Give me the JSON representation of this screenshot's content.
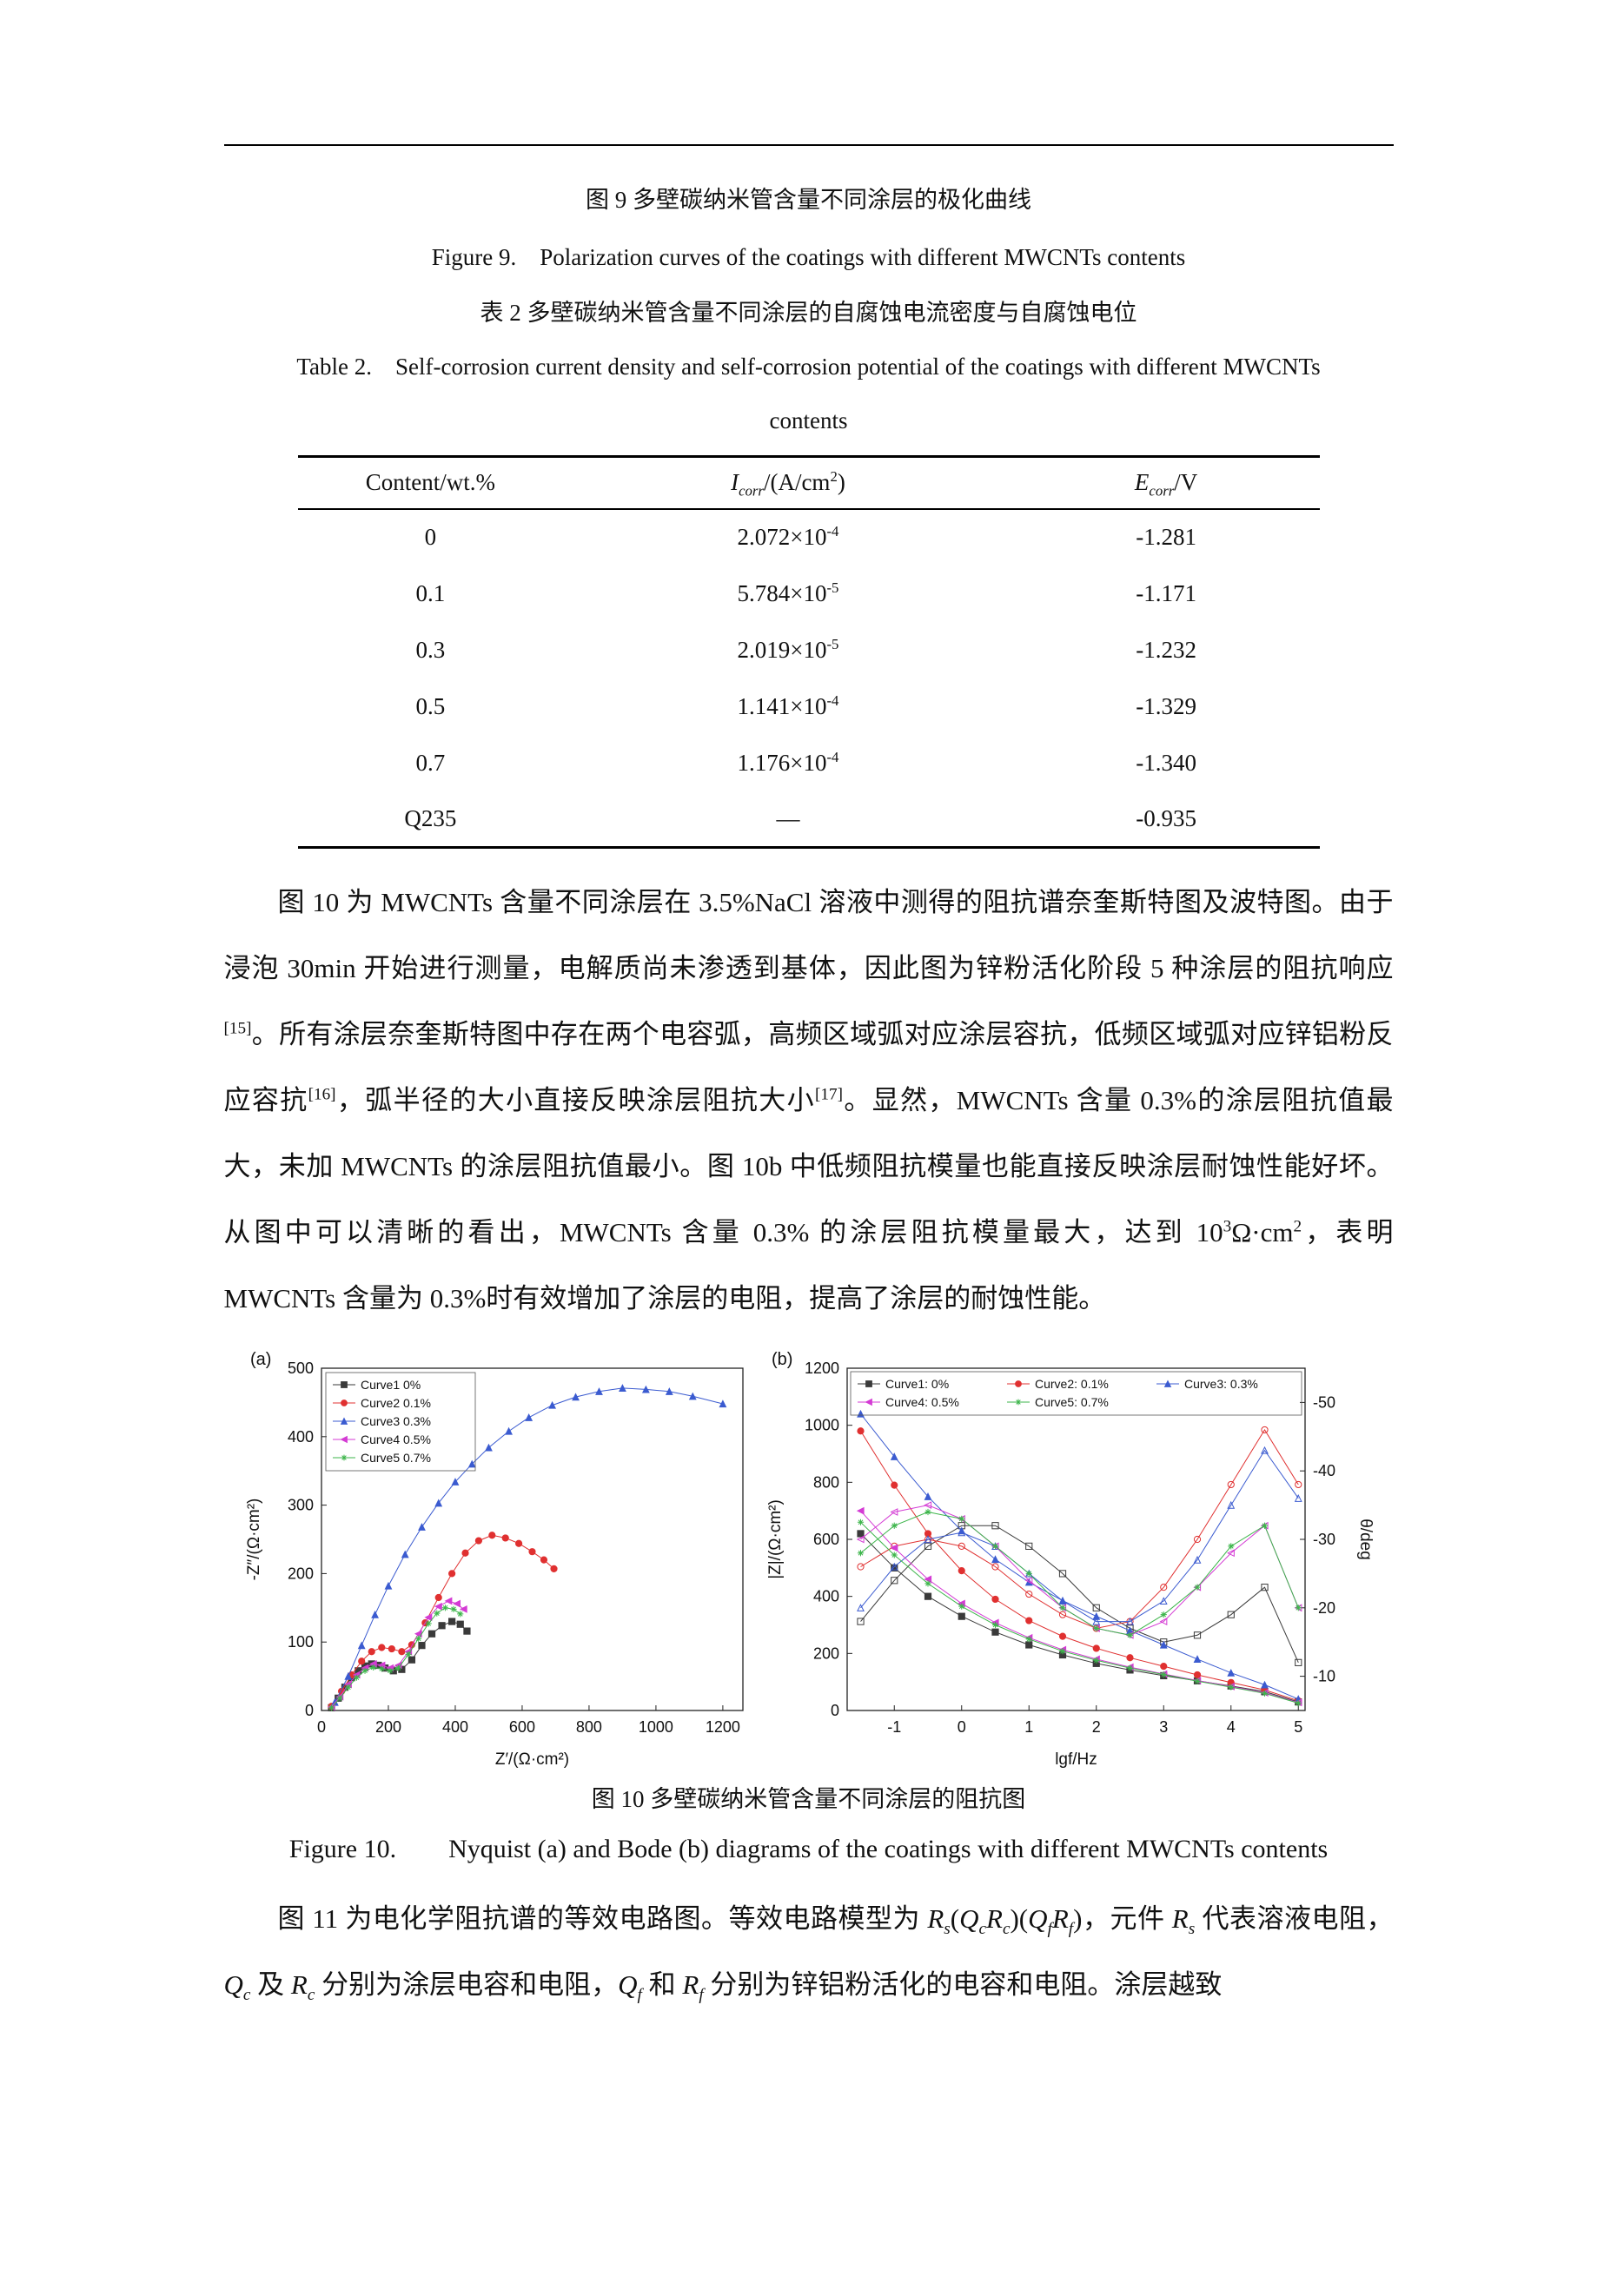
{
  "page": {
    "captions": {
      "fig9_cn": "图 9 多壁碳纳米管含量不同涂层的极化曲线",
      "fig9_en": "Figure 9.    Polarization curves of the coatings with different MWCNTs contents",
      "table2_cn": "表 2 多壁碳纳米管含量不同涂层的自腐蚀电流密度与自腐蚀电位",
      "table2_en_line1": "Table 2.    Self-corrosion current density and self-corrosion potential of the coatings with different MWCNTs",
      "table2_en_line2": "contents",
      "fig10_cn": "图 10 多壁碳纳米管含量不同涂层的阻抗图",
      "fig10_en": "Figure 10.        Nyquist (a) and Bode (b) diagrams of the coatings with different MWCNTs contents"
    },
    "table2": {
      "headers": [
        "Content/wt.%",
        "~I~_{~corr~}/(A/cm^{2})",
        "~E~_{~corr~}/V"
      ],
      "rows": [
        [
          "0",
          "2.072×10^{-4}",
          "-1.281"
        ],
        [
          "0.1",
          "5.784×10^{-5}",
          "-1.171"
        ],
        [
          "0.3",
          "2.019×10^{-5}",
          "-1.232"
        ],
        [
          "0.5",
          "1.141×10^{-4}",
          "-1.329"
        ],
        [
          "0.7",
          "1.176×10^{-4}",
          "-1.340"
        ],
        [
          "Q235",
          "—",
          "-0.935"
        ]
      ]
    },
    "paragraph1": "图 10 为 MWCNTs 含量不同涂层在 3.5%NaCl 溶液中测得的阻抗谱奈奎斯特图及波特图。由于浸泡 30min 开始进行测量，电解质尚未渗透到基体，因此图为锌粉活化阶段 5 种涂层的阻抗响应^{[15]}。所有涂层奈奎斯特图中存在两个电容弧，高频区域弧对应涂层容抗，低频区域弧对应锌铝粉反应容抗^{[16]}，弧半径的大小直接反映涂层阻抗大小^{[17]}。显然，MWCNTs 含量 0.3%的涂层阻抗值最大，未加 MWCNTs 的涂层阻抗值最小。图 10b 中低频阻抗模量也能直接反映涂层耐蚀性能好坏。从图中可以清晰的看出，MWCNTs 含量 0.3% 的涂层阻抗模量最大，达到 10^{3}Ω·cm^{2}，表明 MWCNTs 含量为 0.3%时有效增加了涂层的电阻，提高了涂层的耐蚀性能。",
    "paragraph2": "图 11 为电化学阻抗谱的等效电路图。等效电路模型为 ~R~_{~s~}(~Q~_{~c~}~R~_{~c~})(~Q~_{~f~}~R~_{~f~})，元件 ~R~_{~s~} 代表溶液电阻，~Q~_{~c~} 及 ~R~_{~c~} 分别为涂层电容和电阻，~Q~_{~f~} 和 ~R~_{~f~} 分别为锌铝粉活化的电容和电阻。涂层越致"
  },
  "chart_data": [
    {
      "id": "nyquist",
      "type": "scatter",
      "panel_label": "(a)",
      "xlabel": "Z′/(Ω·cm²)",
      "ylabel": "-Z″/(Ω·cm²)",
      "xlim": [
        0,
        1260
      ],
      "ylim": [
        0,
        500
      ],
      "xticks": [
        0,
        200,
        400,
        600,
        800,
        1000,
        1200
      ],
      "yticks": [
        0,
        100,
        200,
        300,
        400,
        500
      ],
      "legend_position": "top-left",
      "series": [
        {
          "name": "Curve1 0%",
          "color": "#3a3a3a",
          "marker": "square",
          "points": [
            [
              30,
              4
            ],
            [
              50,
              18
            ],
            [
              70,
              34
            ],
            [
              90,
              48
            ],
            [
              110,
              58
            ],
            [
              130,
              65
            ],
            [
              150,
              68
            ],
            [
              170,
              66
            ],
            [
              190,
              62
            ],
            [
              215,
              58
            ],
            [
              240,
              60
            ],
            [
              270,
              74
            ],
            [
              300,
              95
            ],
            [
              330,
              112
            ],
            [
              360,
              124
            ],
            [
              390,
              130
            ],
            [
              415,
              126
            ],
            [
              435,
              116
            ]
          ]
        },
        {
          "name": "Curve2 0.1%",
          "color": "#e03030",
          "marker": "circle",
          "points": [
            [
              30,
              6
            ],
            [
              60,
              28
            ],
            [
              90,
              52
            ],
            [
              120,
              72
            ],
            [
              150,
              86
            ],
            [
              180,
              92
            ],
            [
              210,
              90
            ],
            [
              240,
              86
            ],
            [
              270,
              96
            ],
            [
              310,
              128
            ],
            [
              350,
              165
            ],
            [
              390,
              200
            ],
            [
              430,
              230
            ],
            [
              470,
              248
            ],
            [
              510,
              256
            ],
            [
              550,
              252
            ],
            [
              590,
              244
            ],
            [
              630,
              232
            ],
            [
              665,
              220
            ],
            [
              695,
              207
            ]
          ]
        },
        {
          "name": "Curve3 0.3%",
          "color": "#3b5bd0",
          "marker": "triangle",
          "points": [
            [
              40,
              12
            ],
            [
              80,
              50
            ],
            [
              120,
              95
            ],
            [
              160,
              140
            ],
            [
              200,
              182
            ],
            [
              250,
              228
            ],
            [
              300,
              268
            ],
            [
              350,
              303
            ],
            [
              400,
              334
            ],
            [
              450,
              360
            ],
            [
              500,
              384
            ],
            [
              560,
              408
            ],
            [
              620,
              428
            ],
            [
              690,
              446
            ],
            [
              760,
              458
            ],
            [
              830,
              466
            ],
            [
              900,
              471
            ],
            [
              970,
              469
            ],
            [
              1040,
              466
            ],
            [
              1110,
              459
            ],
            [
              1200,
              448
            ]
          ]
        },
        {
          "name": "Curve4 0.5%",
          "color": "#d43bd4",
          "marker": "tri-left",
          "points": [
            [
              30,
              5
            ],
            [
              55,
              20
            ],
            [
              80,
              38
            ],
            [
              105,
              52
            ],
            [
              130,
              62
            ],
            [
              155,
              68
            ],
            [
              180,
              66
            ],
            [
              205,
              62
            ],
            [
              230,
              66
            ],
            [
              260,
              86
            ],
            [
              290,
              112
            ],
            [
              320,
              136
            ],
            [
              350,
              152
            ],
            [
              380,
              160
            ],
            [
              405,
              156
            ],
            [
              425,
              148
            ]
          ]
        },
        {
          "name": "Curve5 0.7%",
          "color": "#3db54b",
          "marker": "star",
          "points": [
            [
              30,
              4
            ],
            [
              55,
              18
            ],
            [
              80,
              34
            ],
            [
              105,
              48
            ],
            [
              130,
              58
            ],
            [
              155,
              63
            ],
            [
              180,
              61
            ],
            [
              205,
              58
            ],
            [
              230,
              62
            ],
            [
              260,
              82
            ],
            [
              290,
              105
            ],
            [
              320,
              127
            ],
            [
              345,
              142
            ],
            [
              370,
              150
            ],
            [
              395,
              148
            ],
            [
              415,
              141
            ]
          ]
        }
      ]
    },
    {
      "id": "bode",
      "type": "line",
      "panel_label": "(b)",
      "xlabel": "lgf/Hz",
      "ylabel_left": "|Z|/(Ω·cm²)",
      "ylabel_right": "θ/deg",
      "xlim": [
        -1.7,
        5.1
      ],
      "xticks": [
        -1,
        0,
        1,
        2,
        3,
        4,
        5
      ],
      "ylim_left": [
        0,
        1200
      ],
      "yticks_left": [
        0,
        200,
        400,
        600,
        800,
        1000,
        1200
      ],
      "ylim_right": [
        -55,
        -5
      ],
      "yticks_right": [
        -50,
        -40,
        -30,
        -20,
        -10
      ],
      "legend_position": "top",
      "x": [
        -1.5,
        -1,
        -0.5,
        0,
        0.5,
        1,
        1.5,
        2,
        2.5,
        3,
        3.5,
        4,
        4.5,
        5
      ],
      "series": [
        {
          "name": "Curve1: 0%",
          "color": "#3a3a3a",
          "marker": "square",
          "z": [
            620,
            500,
            400,
            330,
            275,
            230,
            195,
            165,
            142,
            122,
            104,
            86,
            66,
            30
          ],
          "theta": [
            -18,
            -24,
            -29,
            -32,
            -32,
            -29,
            -25,
            -20,
            -17,
            -15,
            -16,
            -19,
            -23,
            -12
          ]
        },
        {
          "name": "Curve2: 0.1%",
          "color": "#e03030",
          "marker": "circle",
          "z": [
            980,
            790,
            620,
            490,
            390,
            315,
            260,
            218,
            185,
            155,
            125,
            98,
            72,
            34
          ],
          "theta": [
            -26,
            -29,
            -30,
            -29,
            -26,
            -22,
            -19,
            -17,
            -18,
            -23,
            -30,
            -38,
            -46,
            -38
          ]
        },
        {
          "name": "Curve3: 0.3%",
          "color": "#3b5bd0",
          "marker": "triangle",
          "z": [
            1040,
            890,
            750,
            630,
            530,
            450,
            385,
            330,
            280,
            230,
            180,
            132,
            90,
            40
          ],
          "theta": [
            -20,
            -26,
            -30,
            -31,
            -29,
            -25,
            -21,
            -18,
            -18,
            -21,
            -27,
            -35,
            -43,
            -36
          ]
        },
        {
          "name": "Curve4: 0.5%",
          "color": "#d43bd4",
          "marker": "tri-left",
          "z": [
            700,
            570,
            460,
            375,
            308,
            255,
            213,
            180,
            152,
            128,
            105,
            84,
            62,
            28
          ],
          "theta": [
            -30,
            -34,
            -35,
            -33,
            -29,
            -24,
            -20,
            -17,
            -16,
            -18,
            -23,
            -28,
            -32,
            -20
          ]
        },
        {
          "name": "Curve5: 0.7%",
          "color": "#3db54b",
          "marker": "star",
          "z": [
            660,
            545,
            445,
            365,
            300,
            250,
            208,
            176,
            149,
            126,
            103,
            82,
            60,
            26
          ],
          "theta": [
            -28,
            -32,
            -34,
            -33,
            -29,
            -25,
            -20,
            -17,
            -16,
            -19,
            -23,
            -29,
            -32,
            -20
          ]
        }
      ]
    }
  ]
}
